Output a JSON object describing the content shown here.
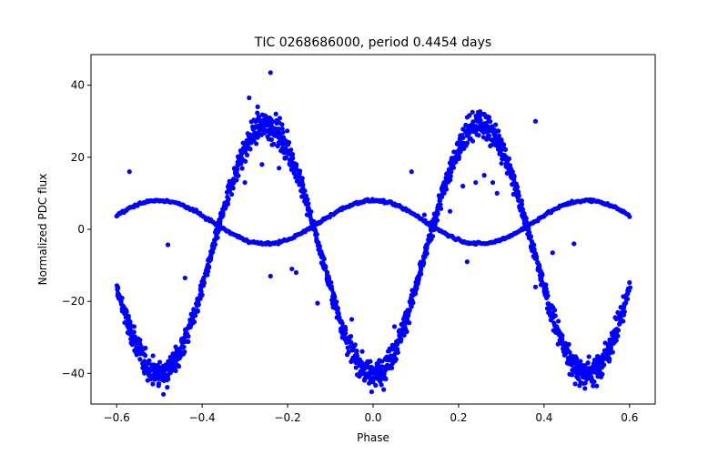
{
  "chart_data": {
    "type": "scatter",
    "title": "TIC 0268686000, period 0.4454 days",
    "xlabel": "Phase",
    "ylabel": "Normalized PDC flux",
    "xlim": [
      -0.66,
      0.66
    ],
    "ylim": [
      -48.5,
      48.5
    ],
    "xticks": [
      -0.6,
      -0.4,
      -0.2,
      0.0,
      0.2,
      0.4,
      0.6
    ],
    "xtick_labels": [
      "−0.6",
      "−0.4",
      "−0.2",
      "0.0",
      "0.2",
      "0.4",
      "0.6"
    ],
    "yticks": [
      -40,
      -20,
      0,
      20,
      40
    ],
    "ytick_labels": [
      "−40",
      "−20",
      "0",
      "20",
      "40"
    ],
    "grid": false,
    "legend": "none",
    "marker_color": "#0000ff",
    "series": [
      {
        "model": "binary-light-curve",
        "x_range": [
          -0.6,
          0.6
        ],
        "primary_amplitude": 34.5,
        "primary_offset": -5.5,
        "secondary_amplitude": 6.0,
        "secondary_offset": 2.0,
        "outlier_points": [
          [
            -0.24,
            43.5
          ],
          [
            -0.29,
            36.5
          ],
          [
            -0.27,
            34.0
          ],
          [
            -0.57,
            16.0
          ],
          [
            -0.48,
            -4.3
          ],
          [
            -0.44,
            -13.5
          ],
          [
            -0.13,
            -20.5
          ],
          [
            -0.18,
            -12.0
          ],
          [
            -0.19,
            -11.0
          ],
          [
            0.09,
            16.0
          ],
          [
            0.18,
            5.0
          ],
          [
            0.21,
            12.0
          ],
          [
            0.24,
            13.0
          ],
          [
            0.29,
            10.0
          ],
          [
            0.34,
            8.0
          ],
          [
            0.38,
            30.0
          ],
          [
            0.22,
            -9.0
          ],
          [
            0.47,
            -4.0
          ],
          [
            0.42,
            -6.5
          ],
          [
            0.38,
            -16.0
          ],
          [
            0.05,
            -27.0
          ],
          [
            -0.05,
            -25.0
          ],
          [
            -0.24,
            -13.0
          ],
          [
            0.26,
            15.0
          ],
          [
            0.28,
            13.0
          ],
          [
            0.15,
            2.5
          ],
          [
            0.12,
            4.0
          ],
          [
            -0.26,
            18.0
          ],
          [
            -0.22,
            17.0
          ],
          [
            -0.3,
            13.0
          ]
        ]
      }
    ]
  }
}
